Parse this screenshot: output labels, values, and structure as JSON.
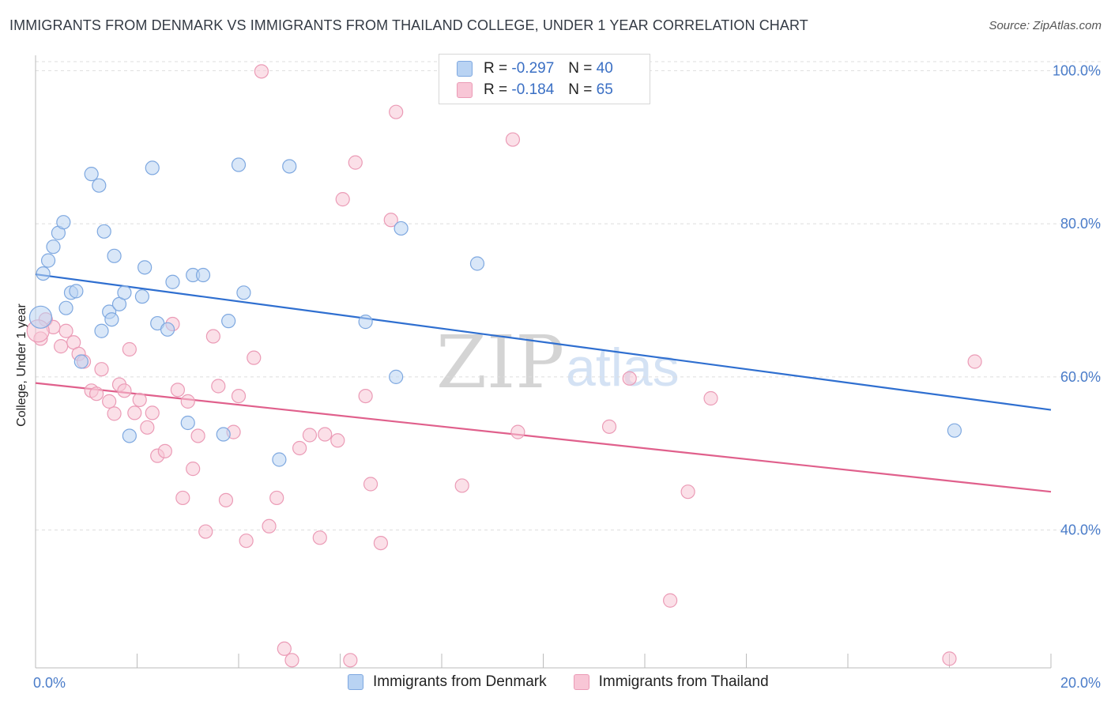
{
  "title": "IMMIGRANTS FROM DENMARK VS IMMIGRANTS FROM THAILAND COLLEGE, UNDER 1 YEAR CORRELATION CHART",
  "source": "Source: ZipAtlas.com",
  "watermark": {
    "zip": "ZIP",
    "atlas": "atlas"
  },
  "legend": {
    "rows": [
      {
        "r_label": "R =",
        "r_value": "-0.297",
        "n_label": "N =",
        "n_value": "40"
      },
      {
        "r_label": "R =",
        "r_value": "-0.184",
        "n_label": "N =",
        "n_value": "65"
      }
    ]
  },
  "colors": {
    "denmark_fill": "#b9d3f3",
    "denmark_stroke": "#7ea8e0",
    "denmark_line": "#2f6fd0",
    "thailand_fill": "#f8c6d6",
    "thailand_stroke": "#eb9bb6",
    "thailand_line": "#e0608c",
    "grid": "#dedede",
    "axis_label": "#4a7cc9"
  },
  "chart_data": {
    "type": "scatter",
    "title": "IMMIGRANTS FROM DENMARK VS IMMIGRANTS FROM THAILAND COLLEGE, UNDER 1 YEAR CORRELATION CHART",
    "xlabel": "",
    "ylabel": "College, Under 1 year",
    "xlim": [
      0,
      20
    ],
    "ylim": [
      22,
      102
    ],
    "x_tick_labels": [
      "0.0%",
      "20.0%"
    ],
    "y_ticks": [
      40,
      60,
      80,
      100
    ],
    "y_tick_labels": [
      "40.0%",
      "60.0%",
      "80.0%",
      "100.0%"
    ],
    "grid": true,
    "legend_position": "top-center",
    "series": [
      {
        "name": "Immigrants from Denmark",
        "r": -0.297,
        "n": 40,
        "trend": [
          [
            0,
            73.4
          ],
          [
            20,
            55.7
          ]
        ],
        "points": [
          [
            0.1,
            67.8
          ],
          [
            0.15,
            73.5
          ],
          [
            0.25,
            75.2
          ],
          [
            0.35,
            77.0
          ],
          [
            0.45,
            78.8
          ],
          [
            0.55,
            80.2
          ],
          [
            0.6,
            69.0
          ],
          [
            0.7,
            71.0
          ],
          [
            0.8,
            71.2
          ],
          [
            0.9,
            62.0
          ],
          [
            1.1,
            86.5
          ],
          [
            1.25,
            85.0
          ],
          [
            1.3,
            66.0
          ],
          [
            1.35,
            79.0
          ],
          [
            1.45,
            68.5
          ],
          [
            1.5,
            67.5
          ],
          [
            1.55,
            75.8
          ],
          [
            1.65,
            69.5
          ],
          [
            1.75,
            71.0
          ],
          [
            1.85,
            52.3
          ],
          [
            2.1,
            70.5
          ],
          [
            2.15,
            74.3
          ],
          [
            2.3,
            87.3
          ],
          [
            2.4,
            67.0
          ],
          [
            2.6,
            66.2
          ],
          [
            2.7,
            72.4
          ],
          [
            3.0,
            54.0
          ],
          [
            3.1,
            73.3
          ],
          [
            3.3,
            73.3
          ],
          [
            3.7,
            52.5
          ],
          [
            3.8,
            67.3
          ],
          [
            4.0,
            87.7
          ],
          [
            4.1,
            71.0
          ],
          [
            4.8,
            49.2
          ],
          [
            5.0,
            87.5
          ],
          [
            6.5,
            67.2
          ],
          [
            7.1,
            60.0
          ],
          [
            7.2,
            79.4
          ],
          [
            8.7,
            74.8
          ],
          [
            18.1,
            53.0
          ]
        ]
      },
      {
        "name": "Immigrants from Thailand",
        "r": -0.184,
        "n": 65,
        "trend": [
          [
            0,
            59.2
          ],
          [
            20,
            45.0
          ]
        ],
        "points": [
          [
            0.1,
            65.0
          ],
          [
            0.2,
            67.5
          ],
          [
            0.35,
            66.5
          ],
          [
            0.5,
            64.0
          ],
          [
            0.6,
            66.0
          ],
          [
            0.75,
            64.5
          ],
          [
            0.85,
            63.0
          ],
          [
            0.95,
            62.0
          ],
          [
            1.1,
            58.2
          ],
          [
            1.2,
            57.8
          ],
          [
            1.3,
            61.0
          ],
          [
            1.45,
            56.8
          ],
          [
            1.55,
            55.2
          ],
          [
            1.65,
            59.0
          ],
          [
            1.75,
            58.2
          ],
          [
            1.85,
            63.6
          ],
          [
            1.95,
            55.3
          ],
          [
            2.05,
            57.0
          ],
          [
            2.2,
            53.4
          ],
          [
            2.3,
            55.3
          ],
          [
            2.4,
            49.7
          ],
          [
            2.55,
            50.3
          ],
          [
            2.7,
            66.9
          ],
          [
            2.8,
            58.3
          ],
          [
            2.9,
            44.2
          ],
          [
            3.0,
            56.8
          ],
          [
            3.1,
            48.0
          ],
          [
            3.2,
            52.3
          ],
          [
            3.35,
            39.8
          ],
          [
            3.5,
            65.3
          ],
          [
            3.6,
            58.8
          ],
          [
            3.75,
            43.9
          ],
          [
            3.9,
            52.8
          ],
          [
            4.0,
            57.5
          ],
          [
            4.15,
            38.6
          ],
          [
            4.3,
            62.5
          ],
          [
            4.45,
            99.9
          ],
          [
            4.6,
            40.5
          ],
          [
            4.75,
            44.2
          ],
          [
            4.9,
            24.5
          ],
          [
            5.05,
            23.0
          ],
          [
            5.2,
            50.7
          ],
          [
            5.4,
            52.4
          ],
          [
            5.6,
            39.0
          ],
          [
            5.7,
            52.5
          ],
          [
            5.95,
            51.7
          ],
          [
            6.05,
            83.2
          ],
          [
            6.2,
            23.0
          ],
          [
            6.3,
            88.0
          ],
          [
            6.5,
            57.5
          ],
          [
            6.6,
            46.0
          ],
          [
            6.8,
            38.3
          ],
          [
            7.0,
            80.5
          ],
          [
            7.1,
            94.6
          ],
          [
            8.4,
            45.8
          ],
          [
            9.4,
            91.0
          ],
          [
            9.5,
            52.8
          ],
          [
            11.3,
            53.5
          ],
          [
            11.7,
            59.8
          ],
          [
            12.5,
            30.8
          ],
          [
            12.85,
            45.0
          ],
          [
            13.3,
            57.2
          ],
          [
            18.0,
            23.2
          ],
          [
            18.5,
            62.0
          ],
          [
            0.05,
            66.0
          ]
        ]
      }
    ]
  },
  "bottom_legend": {
    "items": [
      {
        "label": "Immigrants from Denmark"
      },
      {
        "label": "Immigrants from Thailand"
      }
    ]
  }
}
